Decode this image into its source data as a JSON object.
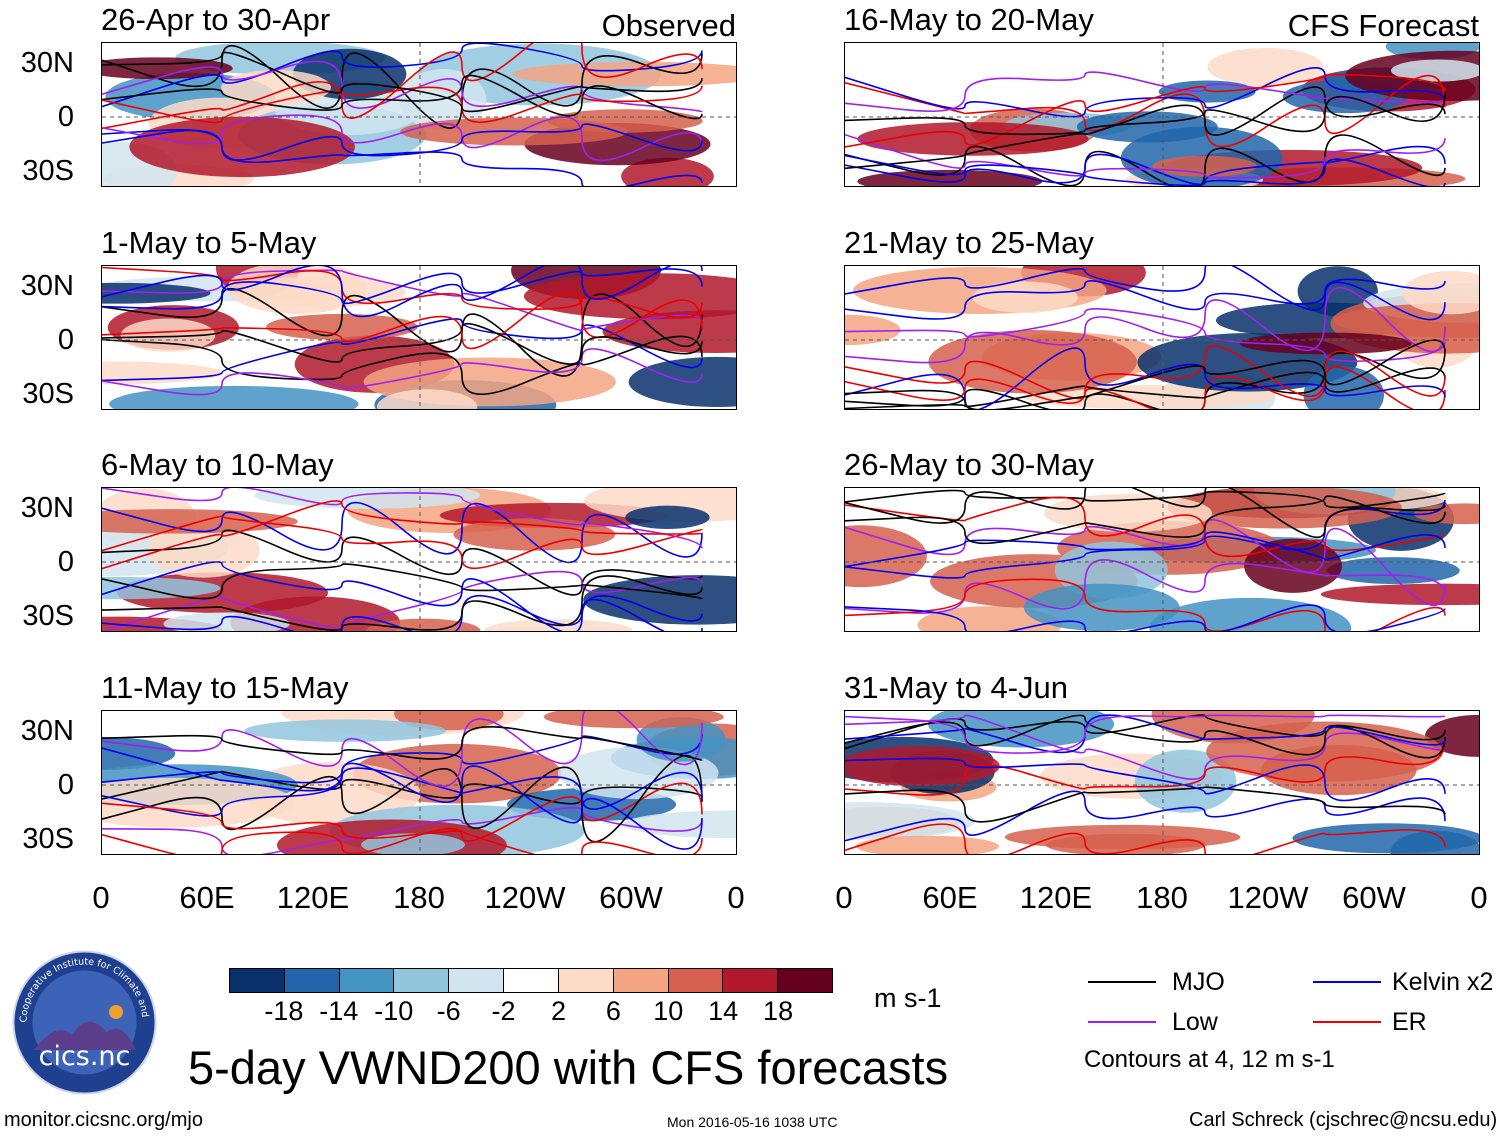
{
  "observed_label": "Observed",
  "forecast_label": "CFS Forecast",
  "panels": {
    "left": [
      {
        "title": "26-Apr to 30-Apr"
      },
      {
        "title": "1-May to 5-May"
      },
      {
        "title": "6-May to 10-May"
      },
      {
        "title": "11-May to 15-May"
      }
    ],
    "right": [
      {
        "title": "16-May to 20-May"
      },
      {
        "title": "21-May to 25-May"
      },
      {
        "title": "26-May to 30-May"
      },
      {
        "title": "31-May to 4-Jun"
      }
    ]
  },
  "lat_labels": [
    "30N",
    "0",
    "30S"
  ],
  "lon_labels": [
    "0",
    "60E",
    "120E",
    "180",
    "120W",
    "60W",
    "0"
  ],
  "colorbar": {
    "colors": [
      "#08306b",
      "#2166ac",
      "#4393c3",
      "#92c5de",
      "#d1e5f0",
      "#ffffff",
      "#fddbc7",
      "#f4a582",
      "#d6604d",
      "#b2182b",
      "#67001f"
    ],
    "labels": [
      "-18",
      "-14",
      "-10",
      "-6",
      "-2",
      "2",
      "6",
      "10",
      "14",
      "18"
    ],
    "units": "m s-1"
  },
  "legend": {
    "mjo": {
      "label": "MJO",
      "color": "#000000"
    },
    "kelvin": {
      "label": "Kelvin x2",
      "color": "#0000ee"
    },
    "low": {
      "label": "Low",
      "color": "#a020f0"
    },
    "er": {
      "label": "ER",
      "color": "#ee0000"
    },
    "note": "Contours at 4, 12 m s-1"
  },
  "logo": {
    "ring_text": "Cooperative Institute for Climate and Satellites",
    "name": "cics.nc"
  },
  "main_title": "5-day VWND200 with CFS forecasts",
  "footer": {
    "url": "monitor.cicsnc.org/mjo",
    "timestamp": "Mon 2016-05-16 1038 UTC",
    "credit": "Carl Schreck (cjschrec@ncsu.edu)"
  }
}
